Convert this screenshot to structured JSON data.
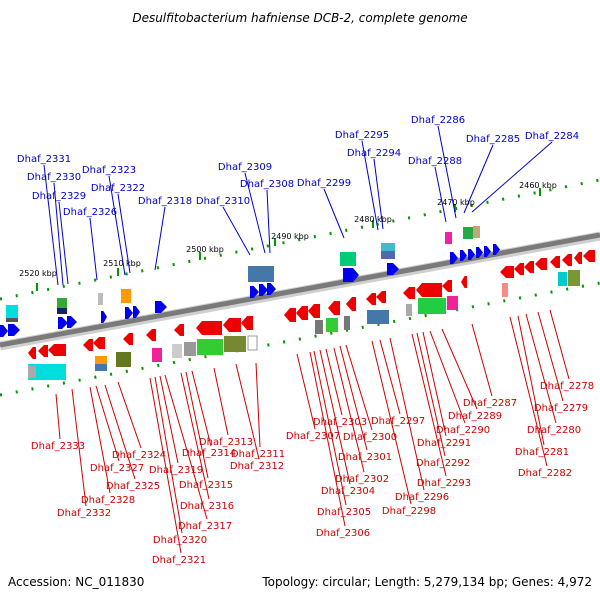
{
  "title": "Desulfitobacterium hafniense DCB-2, complete genome",
  "accession": "Accession: NC_011830",
  "topology": "Topology: circular; Length: 5,279,134 bp; Genes: 4,972",
  "colors": {
    "forward_gene_label": "#0000cc",
    "reverse_gene_label": "#cc0000",
    "forward_arrow": "#0000ee",
    "reverse_arrow": "#ee0000",
    "ruler": "#009900",
    "backbone": "#888888"
  },
  "ticks": [
    "2460 kbp",
    "2470 kbp",
    "2480 kbp",
    "2490 kbp",
    "2500 kbp",
    "2510 kbp",
    "2520 kbp"
  ],
  "forward_genes": [
    "Dhaf_2331",
    "Dhaf_2330",
    "Dhaf_2329",
    "Dhaf_2326",
    "Dhaf_2323",
    "Dhaf_2322",
    "Dhaf_2318",
    "Dhaf_2310",
    "Dhaf_2309",
    "Dhaf_2308",
    "Dhaf_2299",
    "Dhaf_2295",
    "Dhaf_2294",
    "Dhaf_2288",
    "Dhaf_2286",
    "Dhaf_2285",
    "Dhaf_2284"
  ],
  "reverse_genes": [
    "Dhaf_2333",
    "Dhaf_2332",
    "Dhaf_2328",
    "Dhaf_2327",
    "Dhaf_2325",
    "Dhaf_2324",
    "Dhaf_2321",
    "Dhaf_2320",
    "Dhaf_2319",
    "Dhaf_2317",
    "Dhaf_2316",
    "Dhaf_2315",
    "Dhaf_2314",
    "Dhaf_2313",
    "Dhaf_2312",
    "Dhaf_2311",
    "Dhaf_2307",
    "Dhaf_2306",
    "Dhaf_2305",
    "Dhaf_2304",
    "Dhaf_2303",
    "Dhaf_2302",
    "Dhaf_2301",
    "Dhaf_2300",
    "Dhaf_2298",
    "Dhaf_2297",
    "Dhaf_2296",
    "Dhaf_2293",
    "Dhaf_2292",
    "Dhaf_2291",
    "Dhaf_2290",
    "Dhaf_2289",
    "Dhaf_2287",
    "Dhaf_2282",
    "Dhaf_2281",
    "Dhaf_2280",
    "Dhaf_2279",
    "Dhaf_2278"
  ]
}
